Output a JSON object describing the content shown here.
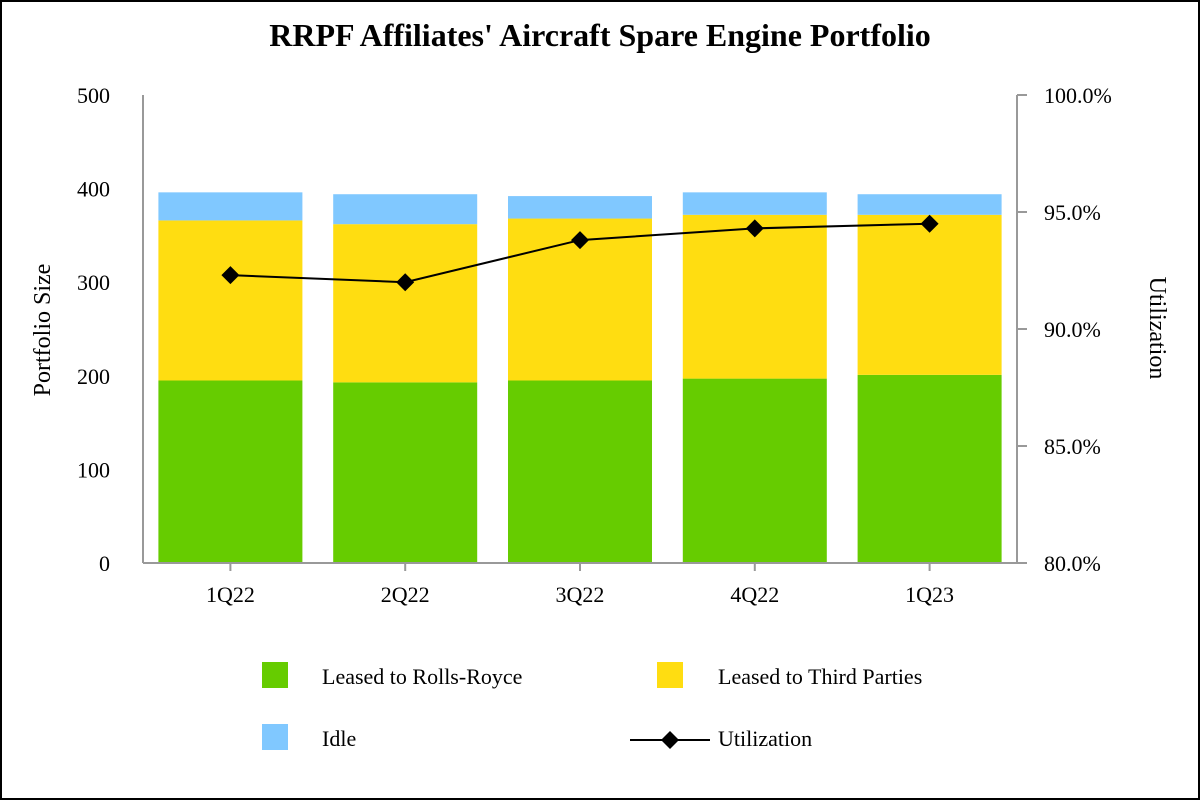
{
  "chart_data": {
    "type": "bar",
    "stacked": true,
    "title": "RRPF Affiliates' Aircraft Spare Engine Portfolio",
    "categories": [
      "1Q22",
      "2Q22",
      "3Q22",
      "4Q22",
      "1Q23"
    ],
    "series": [
      {
        "name": "Leased to Rolls-Royce",
        "values": [
          195,
          193,
          195,
          197,
          201
        ],
        "color": "#66cc00"
      },
      {
        "name": "Leased to Third Parties",
        "values": [
          171,
          169,
          173,
          175,
          171
        ],
        "color": "#ffdd11"
      },
      {
        "name": "Idle",
        "values": [
          30,
          32,
          24,
          24,
          22
        ],
        "color": "#80c8ff"
      }
    ],
    "line_series": {
      "name": "Utilization",
      "axis": "right",
      "values": [
        92.3,
        92.0,
        93.8,
        94.3,
        94.5
      ],
      "color": "#000000",
      "marker": "diamond"
    },
    "ylabel": "Portfolio Size",
    "ylim": [
      0,
      500
    ],
    "yticks": [
      "0",
      "100",
      "200",
      "300",
      "400",
      "500"
    ],
    "y2label": "Utilization",
    "y2lim": [
      80,
      100
    ],
    "y2ticks": [
      "80.0%",
      "85.0%",
      "90.0%",
      "95.0%",
      "100.0%"
    ],
    "legend": {
      "placement": "bottom",
      "entries": [
        "Leased to Rolls-Royce",
        "Leased to Third Parties",
        "Idle",
        "Utilization"
      ]
    }
  }
}
